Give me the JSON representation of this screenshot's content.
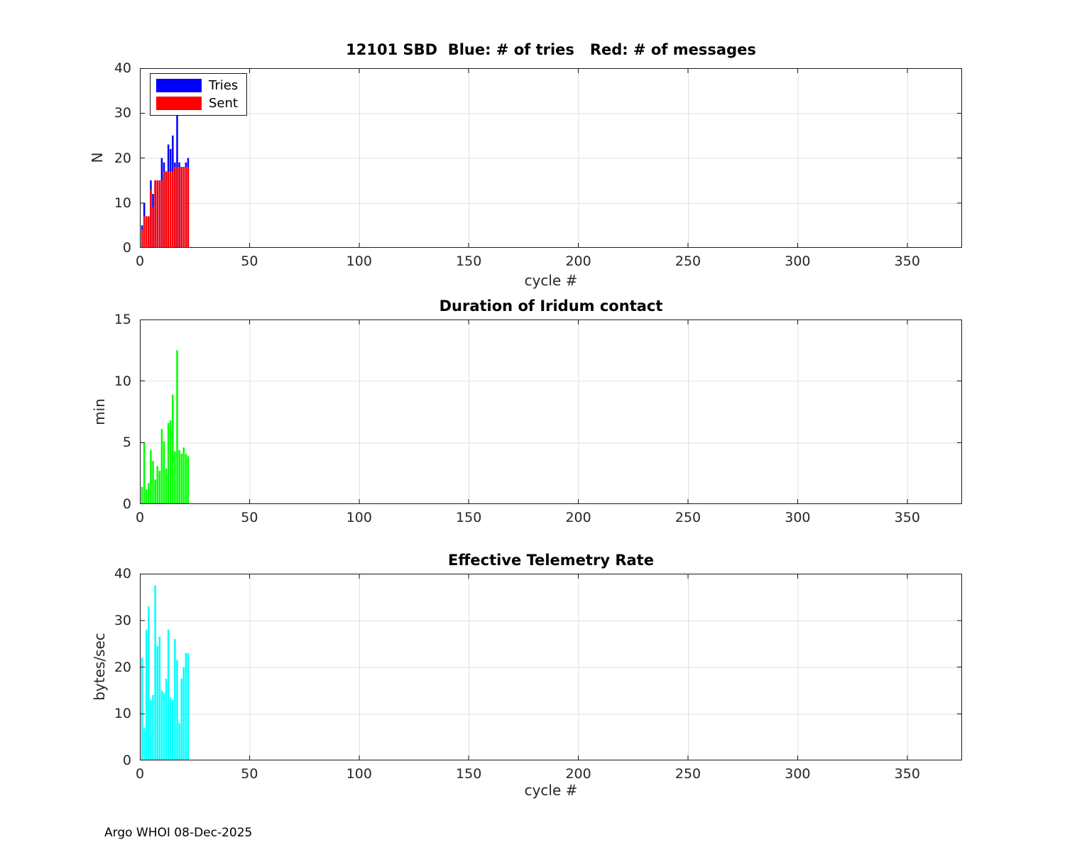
{
  "figure": {
    "footer": "Argo WHOI 08-Dec-2025"
  },
  "colors": {
    "tries_blue": "#0000ff",
    "sent_red": "#ff0000",
    "duration_green": "#00ff00",
    "rate_cyan": "#00ffff",
    "axis": "#1a1a1a",
    "grid": "#e0e0e0",
    "tick_text": "#262626"
  },
  "chart_data": [
    {
      "type": "bar",
      "title": "12101 SBD  Blue: # of tries   Red: # of messages",
      "xlabel": "cycle #",
      "ylabel": "N",
      "xlim": [
        0,
        375
      ],
      "ylim": [
        0,
        40
      ],
      "xticks": [
        0,
        50,
        100,
        150,
        200,
        250,
        300,
        350
      ],
      "yticks": [
        0,
        10,
        20,
        30,
        40
      ],
      "grid": true,
      "legend": {
        "position": "top-left",
        "entries": [
          {
            "label": "Tries",
            "color": "#0000ff"
          },
          {
            "label": "Sent",
            "color": "#ff0000"
          }
        ]
      },
      "x": [
        1,
        2,
        3,
        4,
        5,
        6,
        7,
        8,
        9,
        10,
        11,
        12,
        13,
        14,
        15,
        16,
        17,
        18,
        19,
        20,
        21,
        22
      ],
      "series": [
        {
          "name": "Tries",
          "color": "#0000ff",
          "values": [
            5,
            10,
            7,
            7,
            15,
            12,
            15,
            15,
            15,
            20,
            19,
            17,
            23,
            22,
            25,
            19,
            31,
            19,
            18,
            18,
            19,
            20
          ]
        },
        {
          "name": "Sent",
          "color": "#ff0000",
          "values": [
            4,
            7,
            7,
            7,
            13,
            9,
            15,
            15,
            15,
            15,
            17,
            17,
            17,
            17,
            17,
            18,
            18,
            18,
            18,
            18,
            18,
            18
          ]
        }
      ]
    },
    {
      "type": "bar",
      "title": "Duration of Iridum contact",
      "xlabel": "",
      "ylabel": "min",
      "xlim": [
        0,
        375
      ],
      "ylim": [
        0,
        15
      ],
      "xticks": [
        0,
        50,
        100,
        150,
        200,
        250,
        300,
        350
      ],
      "yticks": [
        0,
        5,
        10,
        15
      ],
      "grid": true,
      "x": [
        1,
        2,
        3,
        4,
        5,
        6,
        7,
        8,
        9,
        10,
        11,
        12,
        13,
        14,
        15,
        16,
        17,
        18,
        19,
        20,
        21,
        22
      ],
      "series": [
        {
          "name": "Duration",
          "color": "#00ff00",
          "values": [
            1.4,
            5.0,
            1.2,
            1.7,
            4.4,
            3.5,
            2.0,
            3.1,
            2.7,
            6.1,
            5.1,
            2.9,
            6.6,
            6.8,
            8.9,
            4.3,
            12.5,
            4.4,
            4.1,
            4.6,
            4.1,
            3.9
          ]
        }
      ]
    },
    {
      "type": "bar",
      "title": "Effective Telemetry Rate",
      "xlabel": "cycle #",
      "ylabel": "bytes/sec",
      "xlim": [
        0,
        375
      ],
      "ylim": [
        0,
        40
      ],
      "xticks": [
        0,
        50,
        100,
        150,
        200,
        250,
        300,
        350
      ],
      "yticks": [
        0,
        10,
        20,
        30,
        40
      ],
      "grid": true,
      "x": [
        1,
        2,
        3,
        4,
        5,
        6,
        7,
        8,
        9,
        10,
        11,
        12,
        13,
        14,
        15,
        16,
        17,
        18,
        19,
        20,
        21,
        22
      ],
      "series": [
        {
          "name": "Rate",
          "color": "#00ffff",
          "values": [
            22,
            7,
            28,
            33,
            13,
            14,
            37.5,
            24.5,
            26.5,
            15,
            14.5,
            17.5,
            28,
            13.5,
            13,
            26,
            21.5,
            8,
            17.5,
            20,
            23,
            23
          ]
        }
      ]
    }
  ]
}
